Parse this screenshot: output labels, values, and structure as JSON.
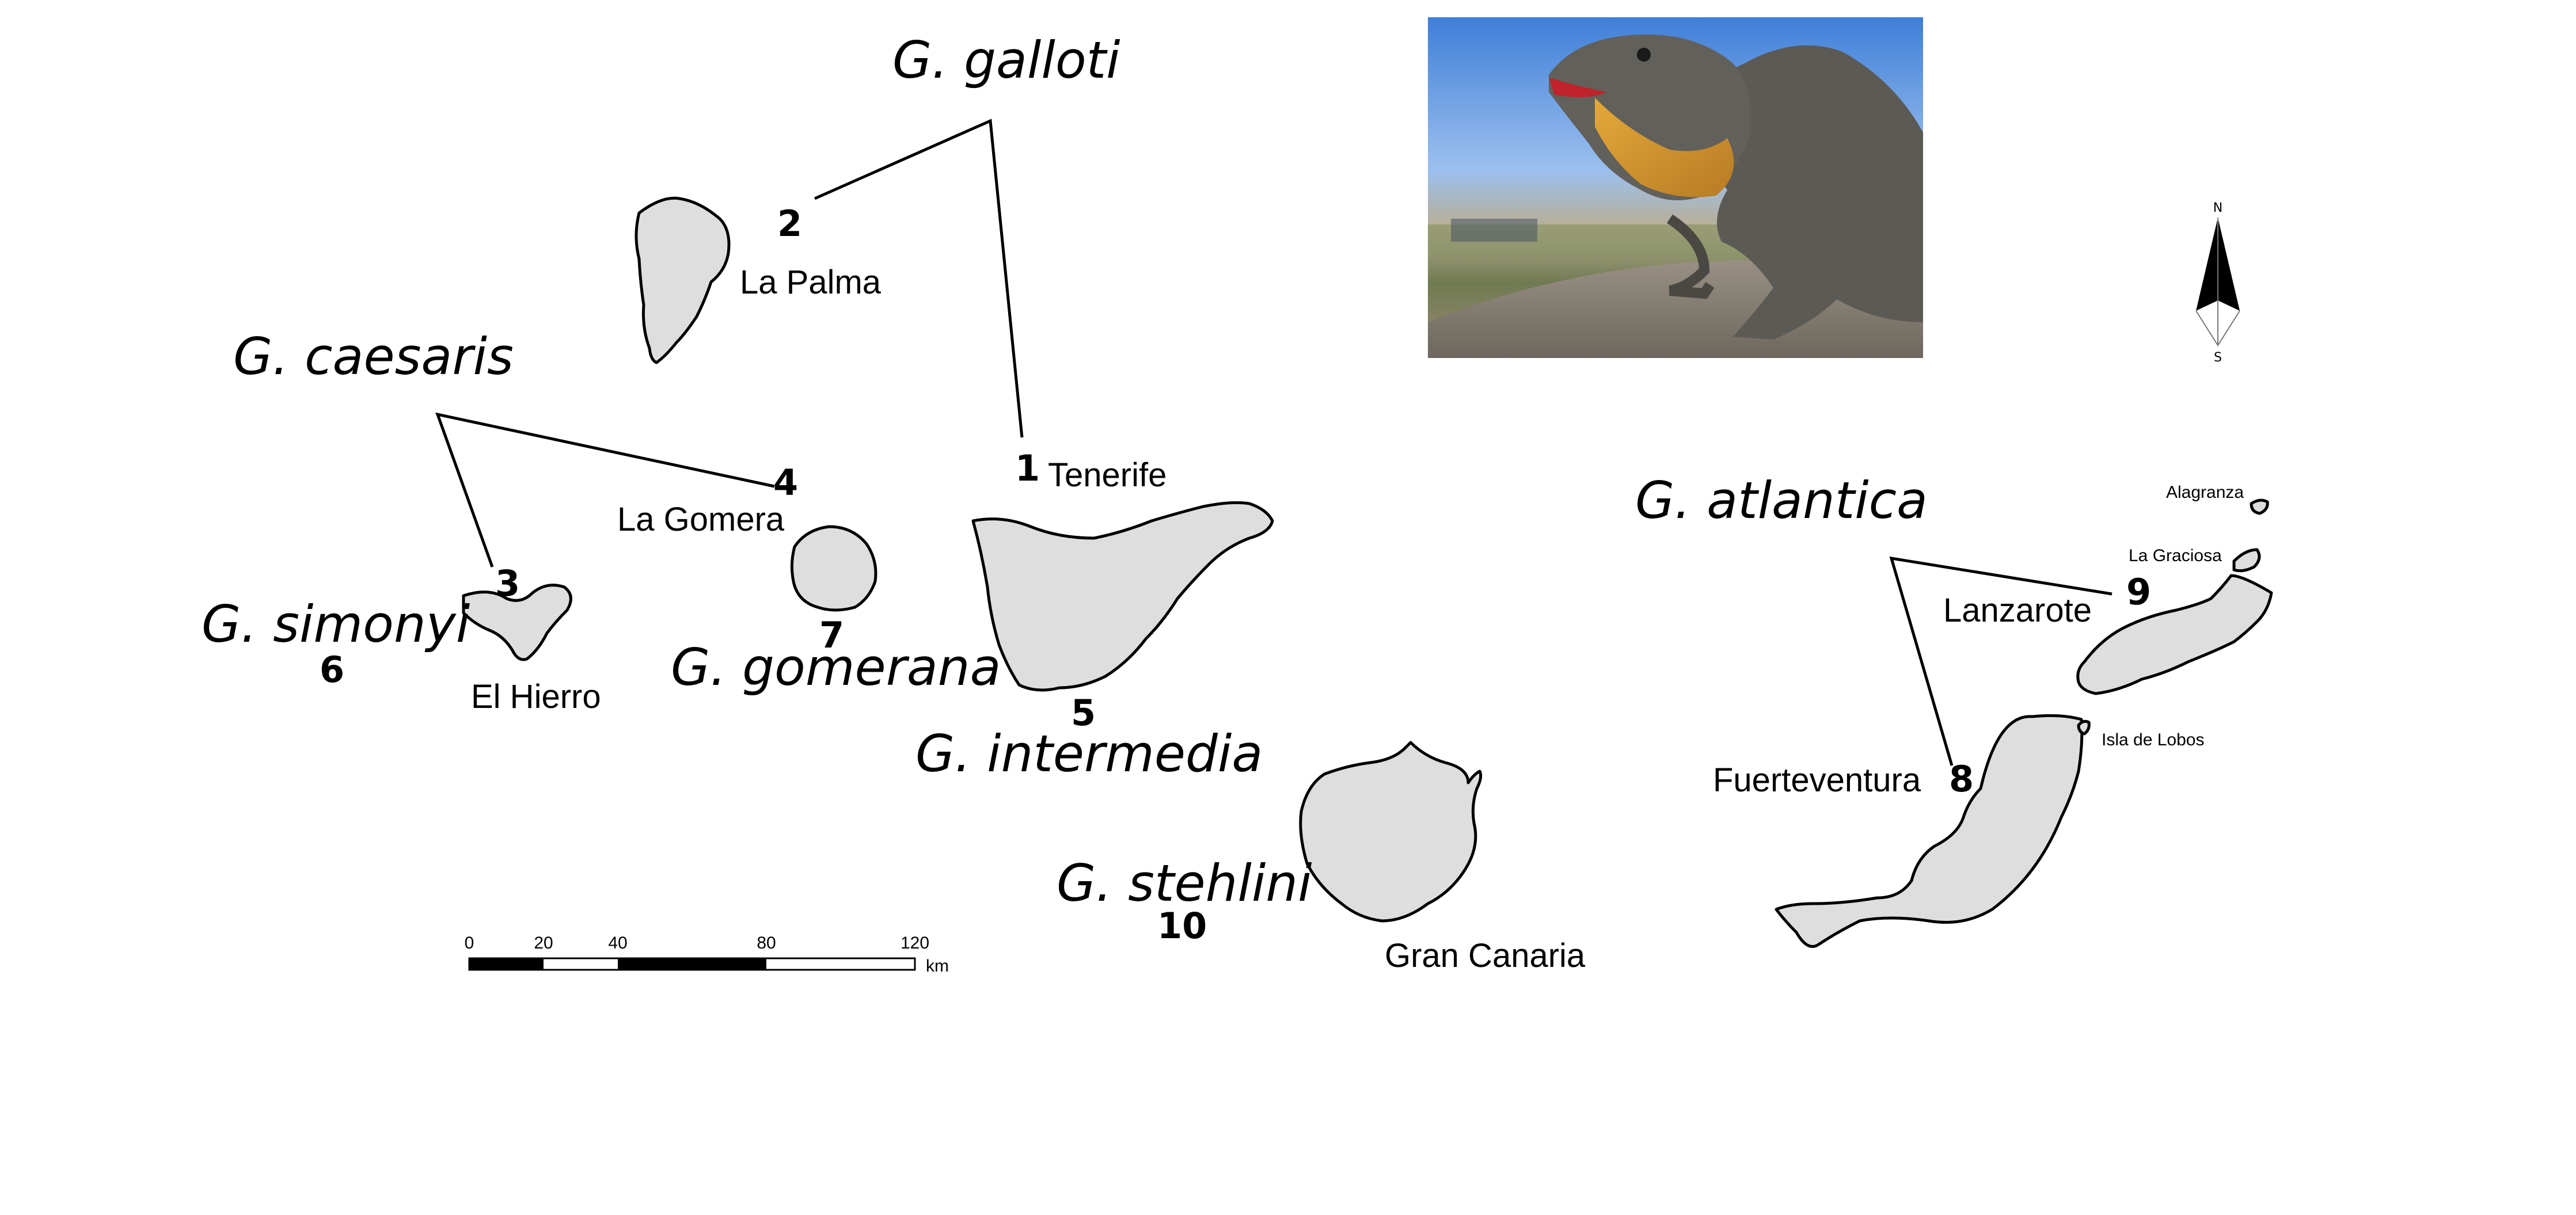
{
  "species": {
    "galloti": "G. galloti",
    "caesaris": "G. caesaris",
    "simonyi": "G. simonyi",
    "gomerana": "G. gomerana",
    "intermedia": "G. intermedia",
    "stehlini": "G. stehlini",
    "atlantica": "G. atlantica"
  },
  "numbers": {
    "n1": "1",
    "n2": "2",
    "n3": "3",
    "n4": "4",
    "n5": "5",
    "n6": "6",
    "n7": "7",
    "n8": "8",
    "n9": "9",
    "n10": "10"
  },
  "islands": {
    "la_palma": "La Palma",
    "tenerife": "Tenerife",
    "la_gomera": "La Gomera",
    "el_hierro": "El Hierro",
    "gran_canaria": "Gran Canaria",
    "fuerteventura": "Fuerteventura",
    "lanzarote": "Lanzarote",
    "alagranza": "Alagranza",
    "la_graciosa": "La Graciosa",
    "isla_de_lobos": "Isla de Lobos"
  },
  "scale_bar": {
    "ticks": [
      "0",
      "20",
      "40",
      "80",
      "120"
    ],
    "unit": "km"
  },
  "north_arrow": {
    "n": "N",
    "s": "S"
  },
  "colors": {
    "land": "#dedede",
    "outline": "#000000"
  },
  "photo": {
    "icon": "lizard-photo"
  }
}
